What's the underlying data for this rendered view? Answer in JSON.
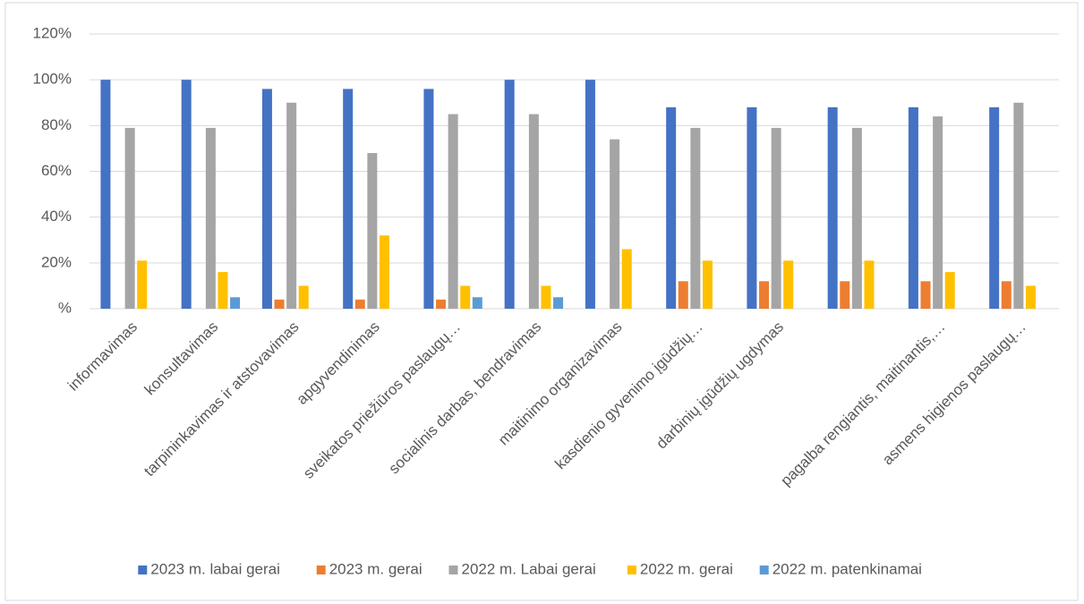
{
  "chart_data": {
    "type": "bar",
    "categories": [
      "informavimas",
      "konsultavimas",
      "tarpininkavimas ir atstovavimas",
      "apgyvendinimas",
      "sveikatos priežiūros paslaugų…",
      "socialinis darbas, bendravimas",
      "maitinimo organizavimas",
      "kasdienio gyvenimo įgūdžių…",
      "darbinių įgūdžių ugdymas",
      null,
      "pagalba rengiantis, maitinantis,…",
      "asmens higienos paslaugų…"
    ],
    "series": [
      {
        "name": "2023 m. labai gerai",
        "color": "#4472c4",
        "values": [
          100,
          100,
          96,
          96,
          96,
          100,
          100,
          88,
          88,
          88,
          88,
          88
        ]
      },
      {
        "name": "2023 m. gerai",
        "color": "#ed7d31",
        "values": [
          null,
          null,
          4,
          4,
          4,
          null,
          null,
          12,
          12,
          12,
          12,
          12
        ]
      },
      {
        "name": "2022 m. Labai gerai",
        "color": "#a5a5a5",
        "values": [
          79,
          79,
          90,
          68,
          85,
          85,
          74,
          79,
          79,
          79,
          84,
          90
        ]
      },
      {
        "name": "2022 m. gerai",
        "color": "#ffc000",
        "values": [
          21,
          16,
          10,
          32,
          10,
          10,
          26,
          21,
          21,
          21,
          16,
          10
        ]
      },
      {
        "name": "2022 m. patenkinamai",
        "color": "#5b9bd5",
        "values": [
          null,
          5,
          null,
          null,
          5,
          5,
          null,
          null,
          null,
          null,
          null,
          null
        ]
      }
    ],
    "ylim": [
      0,
      120
    ],
    "yticks": [
      {
        "value": 0,
        "label": "%"
      },
      {
        "value": 20,
        "label": "20%"
      },
      {
        "value": 40,
        "label": "40%"
      },
      {
        "value": 60,
        "label": "60%"
      },
      {
        "value": 80,
        "label": "80%"
      },
      {
        "value": 100,
        "label": "100%"
      },
      {
        "value": 120,
        "label": "120%"
      }
    ],
    "grid": true,
    "legend": "bottom"
  }
}
